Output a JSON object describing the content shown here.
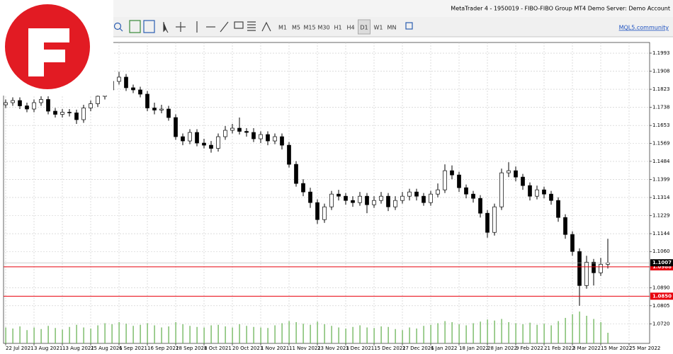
{
  "window": {
    "title": "MetaTrader 4 - 1950019 - FIBO-FIBO Group MT4 Demo Server: Demo Account"
  },
  "toolbar": {
    "timeframes": [
      "M1",
      "M5",
      "M15",
      "M30",
      "H1",
      "H4",
      "D1",
      "W1",
      "MN"
    ],
    "active": 6,
    "link": "MQL5.community"
  },
  "chart_data": {
    "type": "candlestick",
    "open": [
      1.175,
      1.176,
      1.177,
      1.1745,
      1.173,
      1.176,
      1.1775,
      1.172,
      1.1705,
      1.1715,
      1.1712,
      1.168,
      1.1735,
      1.1755,
      1.179,
      1.182,
      1.186,
      1.188,
      1.183,
      1.182,
      1.18,
      1.1735,
      1.1725,
      1.173,
      1.169,
      1.16,
      1.158,
      1.162,
      1.157,
      1.156,
      1.1545,
      1.16,
      1.163,
      1.164,
      1.1625,
      1.162,
      1.159,
      1.161,
      1.158,
      1.16,
      1.156,
      1.147,
      1.138,
      1.134,
      1.129,
      1.121,
      1.127,
      1.133,
      1.132,
      1.13,
      1.129,
      1.132,
      1.128,
      1.13,
      1.132,
      1.127,
      1.13,
      1.132,
      1.134,
      1.132,
      1.129,
      1.133,
      1.135,
      1.144,
      1.142,
      1.136,
      1.133,
      1.131,
      1.124,
      1.115,
      1.127,
      1.143,
      1.144,
      1.141,
      1.137,
      1.132,
      1.135,
      1.133,
      1.13,
      1.122,
      1.114,
      1.106,
      1.09,
      1.101,
      1.096,
      1.1
    ],
    "high": [
      1.1775,
      1.1785,
      1.1785,
      1.176,
      1.1775,
      1.179,
      1.179,
      1.1735,
      1.173,
      1.173,
      1.1727,
      1.175,
      1.177,
      1.1805,
      1.184,
      1.189,
      1.1905,
      1.1895,
      1.1845,
      1.1835,
      1.1815,
      1.176,
      1.175,
      1.1745,
      1.1705,
      1.1615,
      1.1635,
      1.1635,
      1.159,
      1.158,
      1.1615,
      1.165,
      1.166,
      1.169,
      1.164,
      1.164,
      1.1625,
      1.1625,
      1.1615,
      1.1615,
      1.1575,
      1.1485,
      1.14,
      1.136,
      1.1305,
      1.1285,
      1.1345,
      1.135,
      1.1335,
      1.132,
      1.134,
      1.1335,
      1.132,
      1.134,
      1.1335,
      1.132,
      1.134,
      1.1355,
      1.1355,
      1.1335,
      1.1345,
      1.138,
      1.147,
      1.1465,
      1.1435,
      1.1375,
      1.1345,
      1.1325,
      1.1255,
      1.1285,
      1.145,
      1.148,
      1.146,
      1.1425,
      1.1385,
      1.137,
      1.1365,
      1.1345,
      1.1315,
      1.1235,
      1.1155,
      1.1075,
      1.104,
      1.1025,
      1.103,
      1.112
    ],
    "low": [
      1.1735,
      1.1745,
      1.173,
      1.1715,
      1.1715,
      1.1745,
      1.1705,
      1.169,
      1.169,
      1.1695,
      1.166,
      1.1665,
      1.172,
      1.174,
      1.1775,
      1.1805,
      1.1845,
      1.1815,
      1.1805,
      1.1785,
      1.172,
      1.1705,
      1.171,
      1.1675,
      1.1585,
      1.156,
      1.1565,
      1.1555,
      1.1545,
      1.1525,
      1.153,
      1.1585,
      1.1615,
      1.161,
      1.16,
      1.1575,
      1.157,
      1.156,
      1.1565,
      1.154,
      1.1455,
      1.1365,
      1.132,
      1.1265,
      1.119,
      1.1195,
      1.1255,
      1.13,
      1.128,
      1.127,
      1.1275,
      1.124,
      1.1265,
      1.1285,
      1.125,
      1.1255,
      1.1285,
      1.13,
      1.13,
      1.1275,
      1.1275,
      1.1315,
      1.1335,
      1.14,
      1.134,
      1.131,
      1.129,
      1.122,
      1.1125,
      1.1135,
      1.1255,
      1.141,
      1.139,
      1.135,
      1.13,
      1.1305,
      1.131,
      1.128,
      1.12,
      1.112,
      1.104,
      1.0805,
      1.0885,
      1.09,
      1.0945,
      1.098
    ],
    "close": [
      1.176,
      1.177,
      1.1745,
      1.173,
      1.176,
      1.1775,
      1.172,
      1.1705,
      1.1715,
      1.1712,
      1.168,
      1.1735,
      1.1755,
      1.179,
      1.182,
      1.186,
      1.188,
      1.183,
      1.182,
      1.18,
      1.1735,
      1.1725,
      1.173,
      1.169,
      1.16,
      1.158,
      1.162,
      1.157,
      1.156,
      1.1545,
      1.16,
      1.163,
      1.164,
      1.1625,
      1.162,
      1.159,
      1.161,
      1.158,
      1.16,
      1.156,
      1.147,
      1.138,
      1.134,
      1.129,
      1.121,
      1.127,
      1.133,
      1.132,
      1.13,
      1.129,
      1.132,
      1.128,
      1.13,
      1.132,
      1.127,
      1.13,
      1.132,
      1.134,
      1.132,
      1.129,
      1.133,
      1.135,
      1.144,
      1.142,
      1.136,
      1.133,
      1.131,
      1.124,
      1.115,
      1.127,
      1.143,
      1.144,
      1.141,
      1.137,
      1.132,
      1.135,
      1.133,
      1.13,
      1.122,
      1.114,
      1.106,
      1.09,
      1.101,
      1.096,
      1.1,
      1.1007
    ],
    "volume": [
      30,
      28,
      32,
      25,
      30,
      27,
      33,
      29,
      26,
      31,
      35,
      30,
      28,
      34,
      38,
      36,
      40,
      37,
      33,
      35,
      38,
      34,
      30,
      32,
      40,
      36,
      33,
      31,
      30,
      34,
      35,
      32,
      30,
      36,
      33,
      31,
      30,
      29,
      34,
      38,
      42,
      40,
      37,
      35,
      41,
      36,
      33,
      30,
      28,
      31,
      34,
      30,
      29,
      32,
      31,
      27,
      25,
      30,
      28,
      33,
      35,
      38,
      42,
      40,
      36,
      34,
      38,
      41,
      45,
      43,
      46,
      40,
      38,
      36,
      39,
      35,
      37,
      34,
      42,
      48,
      55,
      60,
      52,
      46,
      40,
      20
    ],
    "xlim": [
      -0.3,
      90.9
    ],
    "xticks": [
      {
        "value": 0,
        "label": "22 Jul 2021"
      },
      {
        "value": 4,
        "label": "3 Aug 2021"
      },
      {
        "value": 8,
        "label": "13 Aug 2021"
      },
      {
        "value": 12,
        "label": "25 Aug 2021"
      },
      {
        "value": 16,
        "label": "6 Sep 2021"
      },
      {
        "value": 20,
        "label": "16 Sep 2021"
      },
      {
        "value": 24,
        "label": "28 Sep 2021"
      },
      {
        "value": 28,
        "label": "8 Oct 2021"
      },
      {
        "value": 32,
        "label": "20 Oct 2021"
      },
      {
        "value": 36,
        "label": "1 Nov 2021"
      },
      {
        "value": 40,
        "label": "11 Nov 2021"
      },
      {
        "value": 44,
        "label": "23 Nov 2021"
      },
      {
        "value": 48,
        "label": "3 Dec 2021"
      },
      {
        "value": 52,
        "label": "15 Dec 2021"
      },
      {
        "value": 56,
        "label": "27 Dec 2021"
      },
      {
        "value": 60,
        "label": "6 Jan 2022"
      },
      {
        "value": 64,
        "label": "18 Jan 2022"
      },
      {
        "value": 68,
        "label": "28 Jan 2022"
      },
      {
        "value": 72,
        "label": "9 Feb 2022"
      },
      {
        "value": 76,
        "label": "21 Feb 2022"
      },
      {
        "value": 80,
        "label": "3 Mar 2022"
      },
      {
        "value": 84,
        "label": "15 Mar 2022"
      },
      {
        "value": 88,
        "label": "25 Mar 2022"
      }
    ],
    "ylim": [
      1.0628,
      1.2043
    ],
    "yticks": [
      1.1993,
      1.1908,
      1.1823,
      1.1738,
      1.1653,
      1.1569,
      1.1484,
      1.1399,
      1.1314,
      1.1229,
      1.1144,
      {
        "value": 1.106,
        "label": "1.1060"
      },
      {
        "value": 1.089,
        "label": "1.0890"
      },
      1.0805,
      {
        "value": 1.072,
        "label": "1.0720"
      }
    ],
    "grid": true,
    "bull_color": "#ffffff",
    "bear_color": "#000000",
    "volume_color": "#5fae4a",
    "levels": [
      1.0988,
      {
        "value": 1.085,
        "label": "1.0850"
      }
    ],
    "level_color": "#e8000b",
    "last_price": 1.1007
  }
}
